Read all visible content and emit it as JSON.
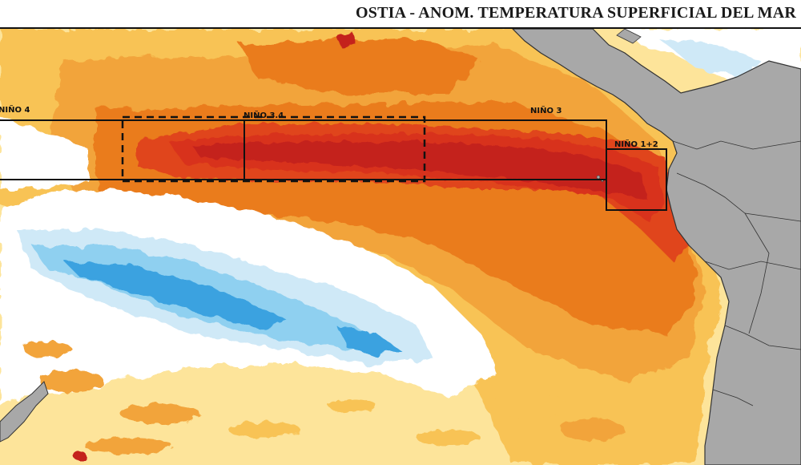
{
  "title": "OSTIA - ANOM. TEMPERATURA SUPERFICIAL DEL MAR",
  "regions": {
    "nino4": "NIÑO 4",
    "nino34": "NIÑO 3.4",
    "nino3": "NIÑO 3",
    "nino12": "NIÑO 1+2"
  },
  "colors": {
    "land": "#a8a8a8",
    "coast": "#333333",
    "anomaly_zero": "#ffffff",
    "warm_light": "#fde49a",
    "warm": "#f8c355",
    "warm_medium": "#f2a43a",
    "hot": "#ea7b1f",
    "very_hot": "#e0441a",
    "extreme": "#c4221d",
    "cool_light": "#cfe9f7",
    "cool": "#8fd0f0",
    "cold": "#3aa2e0"
  }
}
